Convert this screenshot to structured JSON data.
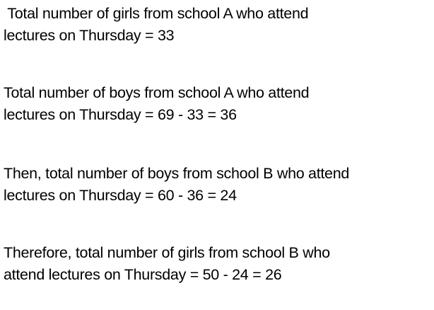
{
  "paragraphs": [
    {
      "lines": [
        " Total number of girls from school A who attend",
        "lectures on Thursday = 33"
      ]
    },
    {
      "lines": [
        "Total number of boys from school A who attend",
        "lectures on Thursday = 69 - 33 = 36"
      ]
    },
    {
      "lines": [
        "Then, total number of boys from school B who attend",
        "lectures on Thursday = 60 - 36 = 24"
      ]
    },
    {
      "lines": [
        "Therefore, total number of girls from school B who",
        "attend lectures on Thursday = 50 - 24 = 26"
      ]
    }
  ]
}
